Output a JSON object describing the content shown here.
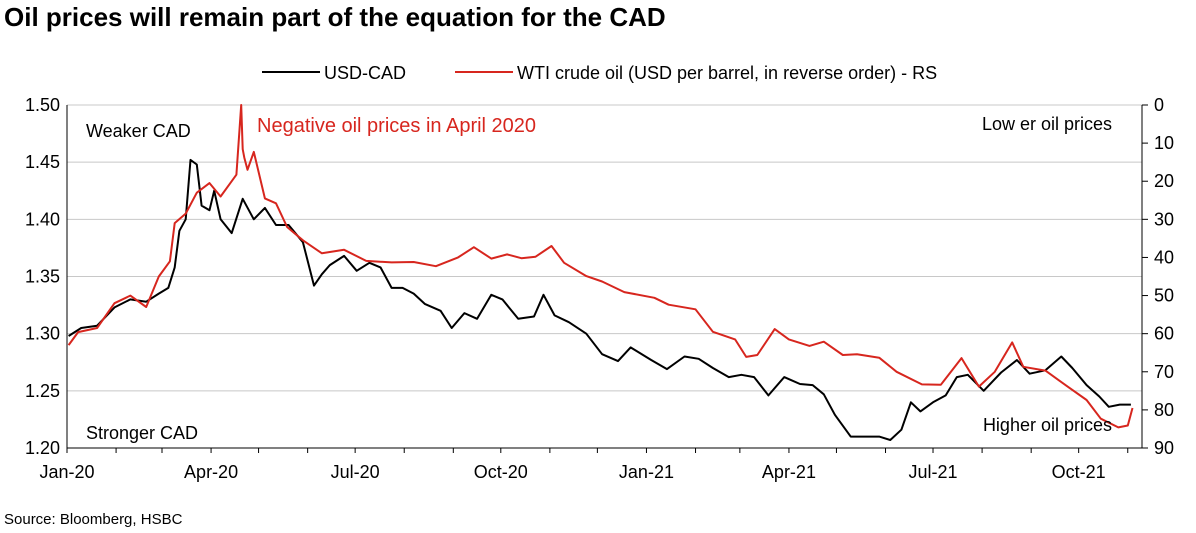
{
  "page": {
    "title": "Oil prices will remain part of the equation for the CAD",
    "source": "Source: Bloomberg, HSBC"
  },
  "chart_data": {
    "type": "line",
    "title": "Oil prices will remain part of the equation for the CAD",
    "x_tick_labels": [
      "Jan-20",
      "Apr-20",
      "Jul-20",
      "Oct-20",
      "Jan-21",
      "Apr-21",
      "Jul-21",
      "Oct-21"
    ],
    "x_tick_dates": [
      "2020-01-01",
      "2020-04-01",
      "2020-07-01",
      "2020-10-01",
      "2021-01-01",
      "2021-04-01",
      "2021-07-01",
      "2021-10-01"
    ],
    "xlim": [
      "2020-01-01",
      "2021-11-10"
    ],
    "y_left": {
      "label": "",
      "ylim": [
        1.2,
        1.5
      ],
      "ticks": [
        "1.20",
        "1.25",
        "1.30",
        "1.35",
        "1.40",
        "1.45",
        "1.50"
      ]
    },
    "y_right": {
      "label": "",
      "ylim": [
        0,
        90
      ],
      "reversed": true,
      "ticks": [
        "0",
        "10",
        "20",
        "30",
        "40",
        "50",
        "60",
        "70",
        "80",
        "90"
      ]
    },
    "grid": true,
    "legend_position": "top-center",
    "annotations": {
      "weaker": "Weaker CAD",
      "stronger": "Stronger CAD",
      "lower_oil": "Low er oil prices",
      "higher_oil": "Higher oil prices",
      "negative": "Negative oil prices in April 2020"
    },
    "series": [
      {
        "name": "USD-CAD",
        "axis": "left",
        "color": "#000000",
        "points": [
          [
            "2020-01-02",
            1.298
          ],
          [
            "2020-01-10",
            1.305
          ],
          [
            "2020-01-20",
            1.307
          ],
          [
            "2020-01-31",
            1.323
          ],
          [
            "2020-02-10",
            1.33
          ],
          [
            "2020-02-20",
            1.328
          ],
          [
            "2020-02-28",
            1.335
          ],
          [
            "2020-03-05",
            1.34
          ],
          [
            "2020-03-09",
            1.358
          ],
          [
            "2020-03-12",
            1.39
          ],
          [
            "2020-03-16",
            1.4
          ],
          [
            "2020-03-19",
            1.452
          ],
          [
            "2020-03-23",
            1.448
          ],
          [
            "2020-03-26",
            1.412
          ],
          [
            "2020-03-31",
            1.408
          ],
          [
            "2020-04-03",
            1.425
          ],
          [
            "2020-04-07",
            1.4
          ],
          [
            "2020-04-14",
            1.388
          ],
          [
            "2020-04-21",
            1.418
          ],
          [
            "2020-04-28",
            1.4
          ],
          [
            "2020-05-05",
            1.41
          ],
          [
            "2020-05-12",
            1.395
          ],
          [
            "2020-05-20",
            1.395
          ],
          [
            "2020-05-29",
            1.38
          ],
          [
            "2020-06-05",
            1.342
          ],
          [
            "2020-06-10",
            1.352
          ],
          [
            "2020-06-15",
            1.36
          ],
          [
            "2020-06-24",
            1.368
          ],
          [
            "2020-07-02",
            1.355
          ],
          [
            "2020-07-10",
            1.362
          ],
          [
            "2020-07-17",
            1.358
          ],
          [
            "2020-07-24",
            1.34
          ],
          [
            "2020-07-31",
            1.34
          ],
          [
            "2020-08-07",
            1.335
          ],
          [
            "2020-08-14",
            1.326
          ],
          [
            "2020-08-24",
            1.32
          ],
          [
            "2020-08-31",
            1.305
          ],
          [
            "2020-09-08",
            1.318
          ],
          [
            "2020-09-16",
            1.313
          ],
          [
            "2020-09-25",
            1.334
          ],
          [
            "2020-10-02",
            1.33
          ],
          [
            "2020-10-12",
            1.313
          ],
          [
            "2020-10-22",
            1.315
          ],
          [
            "2020-10-28",
            1.334
          ],
          [
            "2020-11-04",
            1.316
          ],
          [
            "2020-11-13",
            1.31
          ],
          [
            "2020-11-24",
            1.3
          ],
          [
            "2020-12-04",
            1.282
          ],
          [
            "2020-12-14",
            1.276
          ],
          [
            "2020-12-22",
            1.288
          ],
          [
            "2021-01-04",
            1.277
          ],
          [
            "2021-01-14",
            1.269
          ],
          [
            "2021-01-25",
            1.28
          ],
          [
            "2021-02-03",
            1.278
          ],
          [
            "2021-02-12",
            1.27
          ],
          [
            "2021-02-22",
            1.262
          ],
          [
            "2021-03-02",
            1.264
          ],
          [
            "2021-03-10",
            1.262
          ],
          [
            "2021-03-19",
            1.246
          ],
          [
            "2021-03-29",
            1.262
          ],
          [
            "2021-04-08",
            1.256
          ],
          [
            "2021-04-16",
            1.255
          ],
          [
            "2021-04-23",
            1.247
          ],
          [
            "2021-04-30",
            1.229
          ],
          [
            "2021-05-10",
            1.21
          ],
          [
            "2021-05-19",
            1.21
          ],
          [
            "2021-05-28",
            1.21
          ],
          [
            "2021-06-04",
            1.207
          ],
          [
            "2021-06-11",
            1.216
          ],
          [
            "2021-06-17",
            1.24
          ],
          [
            "2021-06-23",
            1.232
          ],
          [
            "2021-07-01",
            1.24
          ],
          [
            "2021-07-09",
            1.246
          ],
          [
            "2021-07-16",
            1.262
          ],
          [
            "2021-07-23",
            1.264
          ],
          [
            "2021-08-02",
            1.25
          ],
          [
            "2021-08-13",
            1.266
          ],
          [
            "2021-08-23",
            1.277
          ],
          [
            "2021-08-31",
            1.265
          ],
          [
            "2021-09-10",
            1.268
          ],
          [
            "2021-09-20",
            1.28
          ],
          [
            "2021-09-27",
            1.27
          ],
          [
            "2021-10-06",
            1.255
          ],
          [
            "2021-10-14",
            1.245
          ],
          [
            "2021-10-20",
            1.236
          ],
          [
            "2021-10-27",
            1.238
          ],
          [
            "2021-11-03",
            1.238
          ]
        ]
      },
      {
        "name": "WTI crude oil (USD per barrel, in reverse order) - RS",
        "axis": "right",
        "color": "#d7261e",
        "points": [
          [
            "2020-01-02",
            63.0
          ],
          [
            "2020-01-08",
            59.6
          ],
          [
            "2020-01-20",
            58.5
          ],
          [
            "2020-01-31",
            52.0
          ],
          [
            "2020-02-10",
            50.0
          ],
          [
            "2020-02-20",
            53.0
          ],
          [
            "2020-02-28",
            45.0
          ],
          [
            "2020-03-06",
            41.0
          ],
          [
            "2020-03-09",
            31.0
          ],
          [
            "2020-03-16",
            28.5
          ],
          [
            "2020-03-23",
            23.0
          ],
          [
            "2020-03-31",
            20.5
          ],
          [
            "2020-04-07",
            24.0
          ],
          [
            "2020-04-14",
            20.0
          ],
          [
            "2020-04-17",
            18.3
          ],
          [
            "2020-04-20",
            0.0
          ],
          [
            "2020-04-21",
            11.6
          ],
          [
            "2020-04-22",
            13.8
          ],
          [
            "2020-04-24",
            17.0
          ],
          [
            "2020-04-28",
            12.3
          ],
          [
            "2020-05-05",
            24.5
          ],
          [
            "2020-05-12",
            25.8
          ],
          [
            "2020-05-19",
            32.0
          ],
          [
            "2020-05-29",
            35.5
          ],
          [
            "2020-06-10",
            38.9
          ],
          [
            "2020-06-24",
            38.0
          ],
          [
            "2020-07-08",
            40.9
          ],
          [
            "2020-07-24",
            41.3
          ],
          [
            "2020-08-07",
            41.2
          ],
          [
            "2020-08-21",
            42.3
          ],
          [
            "2020-09-04",
            40.0
          ],
          [
            "2020-09-14",
            37.3
          ],
          [
            "2020-09-25",
            40.3
          ],
          [
            "2020-10-05",
            39.2
          ],
          [
            "2020-10-14",
            40.2
          ],
          [
            "2020-10-23",
            39.8
          ],
          [
            "2020-11-02",
            37.0
          ],
          [
            "2020-11-10",
            41.4
          ],
          [
            "2020-11-24",
            44.9
          ],
          [
            "2020-12-04",
            46.3
          ],
          [
            "2020-12-18",
            49.1
          ],
          [
            "2021-01-06",
            50.6
          ],
          [
            "2021-01-15",
            52.4
          ],
          [
            "2021-02-01",
            53.6
          ],
          [
            "2021-02-12",
            59.5
          ],
          [
            "2021-02-26",
            61.5
          ],
          [
            "2021-03-05",
            66.1
          ],
          [
            "2021-03-12",
            65.6
          ],
          [
            "2021-03-23",
            58.8
          ],
          [
            "2021-04-01",
            61.5
          ],
          [
            "2021-04-14",
            63.2
          ],
          [
            "2021-04-23",
            62.1
          ],
          [
            "2021-05-05",
            65.6
          ],
          [
            "2021-05-14",
            65.4
          ],
          [
            "2021-05-28",
            66.3
          ],
          [
            "2021-06-08",
            70.0
          ],
          [
            "2021-06-24",
            73.3
          ],
          [
            "2021-07-06",
            73.4
          ],
          [
            "2021-07-19",
            66.4
          ],
          [
            "2021-07-30",
            73.9
          ],
          [
            "2021-08-09",
            70.0
          ],
          [
            "2021-08-20",
            62.3
          ],
          [
            "2021-08-27",
            68.7
          ],
          [
            "2021-09-10",
            69.7
          ],
          [
            "2021-09-24",
            73.9
          ],
          [
            "2021-10-06",
            77.4
          ],
          [
            "2021-10-15",
            82.3
          ],
          [
            "2021-10-26",
            84.6
          ],
          [
            "2021-11-01",
            84.1
          ],
          [
            "2021-11-04",
            79.5
          ]
        ]
      }
    ]
  }
}
